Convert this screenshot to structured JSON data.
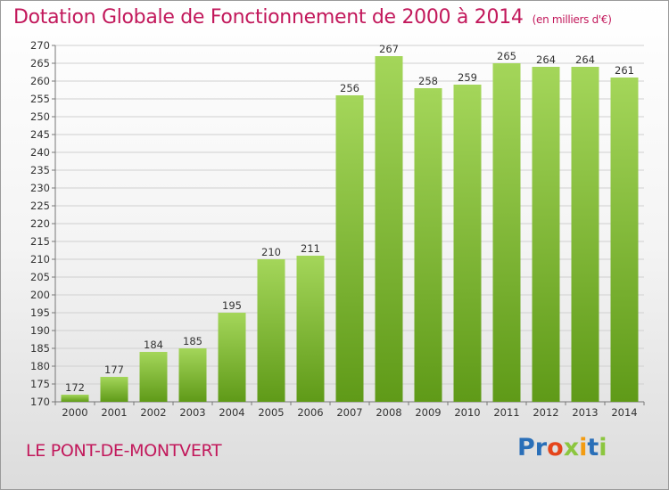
{
  "title": "Dotation Globale de Fonctionnement de 2000 à 2014",
  "unit": "(en milliers d'€)",
  "commune": "LE PONT-DE-MONTVERT",
  "logo": {
    "letters": [
      {
        "ch": "P",
        "color": "#2a6fb8"
      },
      {
        "ch": "r",
        "color": "#2a6fb8"
      },
      {
        "ch": "o",
        "color": "#e5451b"
      },
      {
        "ch": "x",
        "color": "#8cc63f"
      },
      {
        "ch": "i",
        "color": "#f39c12"
      },
      {
        "ch": "t",
        "color": "#2a6fb8"
      },
      {
        "ch": "i",
        "color": "#8cc63f"
      }
    ]
  },
  "colors": {
    "title": "#c2185b",
    "bar_light": "#a4d65a",
    "bar_dark": "#5f9a18",
    "grid": "#d0d0d0"
  },
  "chart_data": {
    "type": "bar",
    "categories": [
      "2000",
      "2001",
      "2002",
      "2003",
      "2004",
      "2005",
      "2006",
      "2007",
      "2008",
      "2009",
      "2010",
      "2011",
      "2012",
      "2013",
      "2014"
    ],
    "values": [
      172,
      177,
      184,
      185,
      195,
      210,
      211,
      256,
      267,
      258,
      259,
      265,
      264,
      264,
      261
    ],
    "ylim": [
      170,
      270
    ],
    "yticks": [
      170,
      175,
      180,
      185,
      190,
      195,
      200,
      205,
      210,
      215,
      220,
      225,
      230,
      235,
      240,
      245,
      250,
      255,
      260,
      265,
      270
    ],
    "grid": true,
    "data_labels": true
  }
}
